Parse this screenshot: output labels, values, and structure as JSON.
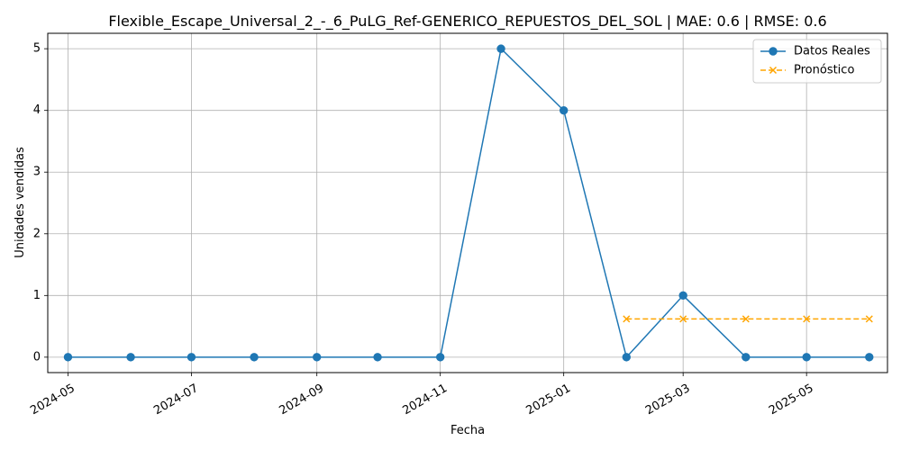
{
  "chart_data": {
    "type": "line",
    "title": "Flexible_Escape_Universal_2_-_6_PuLG_Ref-GENERICO_REPUESTOS_DEL_SOL | MAE: 0.6 | RMSE: 0.6",
    "xlabel": "Fecha",
    "ylabel": "Unidades vendidas",
    "ylim": [
      -0.25,
      5.25
    ],
    "xlim": [
      "2024-04-21",
      "2025-06-10"
    ],
    "grid": true,
    "legend_position": "top-right",
    "x_ticks": [
      "2024-05-01",
      "2024-07-01",
      "2024-09-01",
      "2024-11-01",
      "2025-01-01",
      "2025-03-01",
      "2025-05-01"
    ],
    "x_tick_labels": [
      "2024-05",
      "2024-07",
      "2024-09",
      "2024-11",
      "2025-01",
      "2025-03",
      "2025-05"
    ],
    "y_ticks": [
      0,
      1,
      2,
      3,
      4,
      5
    ],
    "y_tick_labels": [
      "0",
      "1",
      "2",
      "3",
      "4",
      "5"
    ],
    "series": [
      {
        "name": "Datos Reales",
        "color": "#1f77b4",
        "marker": "circle",
        "line_style": "solid",
        "x": [
          "2024-05-01",
          "2024-06-01",
          "2024-07-01",
          "2024-08-01",
          "2024-09-01",
          "2024-10-01",
          "2024-11-01",
          "2024-12-01",
          "2025-01-01",
          "2025-02-01",
          "2025-03-01",
          "2025-04-01",
          "2025-05-01",
          "2025-06-01"
        ],
        "values": [
          0,
          0,
          0,
          0,
          0,
          0,
          0,
          5,
          4,
          0,
          1,
          0,
          0,
          0
        ]
      },
      {
        "name": "Pronóstico",
        "color": "#ffa500",
        "marker": "x",
        "line_style": "dashed",
        "x": [
          "2025-02-01",
          "2025-03-01",
          "2025-04-01",
          "2025-05-01",
          "2025-06-01"
        ],
        "values": [
          0.62,
          0.62,
          0.62,
          0.62,
          0.62
        ]
      }
    ]
  }
}
